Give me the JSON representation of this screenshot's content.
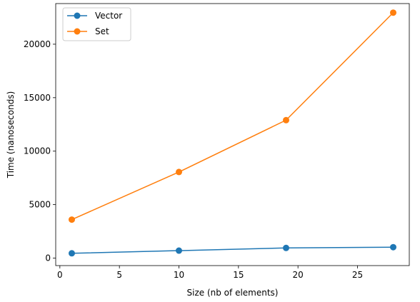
{
  "chart_data": {
    "type": "line",
    "title": "",
    "xlabel": "Size (nb of elements)",
    "ylabel": "Time (nanoseconds)",
    "xlim": [
      -0.35,
      29.35
    ],
    "ylim": [
      -700,
      23800
    ],
    "xticks": [
      0,
      5,
      10,
      15,
      20,
      25
    ],
    "yticks": [
      0,
      5000,
      10000,
      15000,
      20000
    ],
    "grid": false,
    "legend_position": "top-left",
    "series": [
      {
        "name": "Vector",
        "color": "#1f77b4",
        "marker": "circle",
        "x": [
          1,
          10,
          19,
          28
        ],
        "y": [
          450,
          700,
          950,
          1020
        ]
      },
      {
        "name": "Set",
        "color": "#ff7f0e",
        "marker": "circle",
        "x": [
          1,
          10,
          19,
          28
        ],
        "y": [
          3600,
          8050,
          12900,
          22950
        ]
      }
    ]
  }
}
